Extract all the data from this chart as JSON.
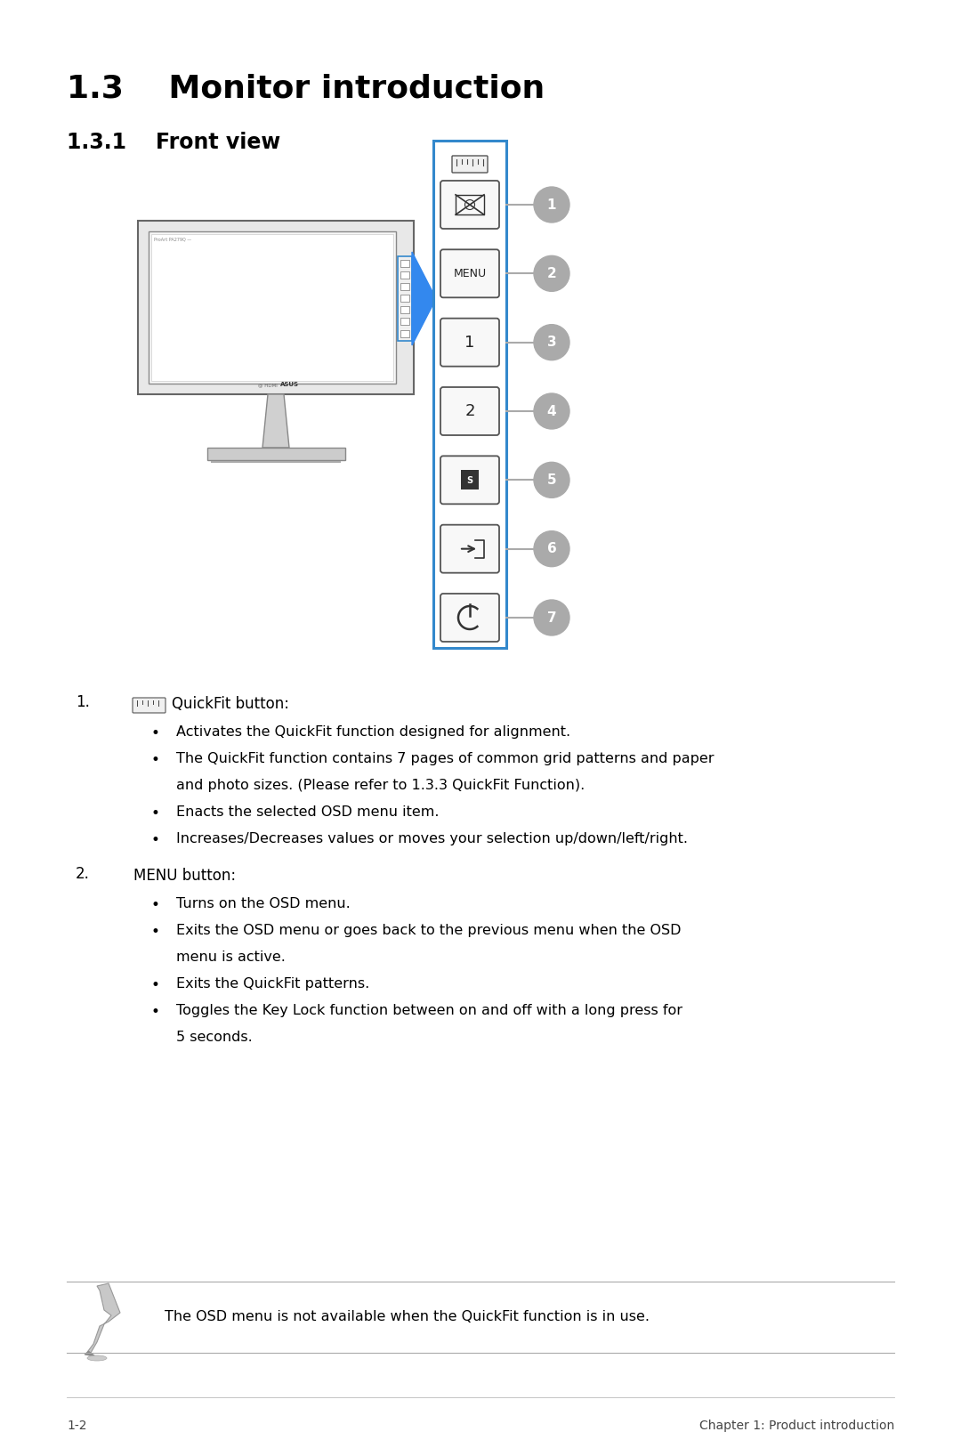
{
  "title": "1.3    Monitor introduction",
  "subtitle": "1.3.1    Front view",
  "bg_color": "#ffffff",
  "text_color": "#000000",
  "footer_left": "1-2",
  "footer_right": "Chapter 1: Product introduction",
  "note_text": "The OSD menu is not available when the QuickFit function is in use.",
  "number_labels": [
    "1",
    "2",
    "3",
    "4",
    "5",
    "6",
    "7"
  ],
  "items": [
    {
      "num": "1.",
      "label": "QuickFit button:",
      "bullets": [
        "Activates the QuickFit function designed for alignment.",
        "The QuickFit function contains 7 pages of common grid patterns and paper\nand photo sizes. (Please refer to 1.3.3 QuickFit Function).",
        "Enacts the selected OSD menu item.",
        "Increases/Decreases values or moves your selection up/down/left/right."
      ]
    },
    {
      "num": "2.",
      "label": "MENU button:",
      "bullets": [
        "Turns on the OSD menu.",
        "Exits the OSD menu or goes back to the previous menu when the OSD\nmenu is active.",
        "Exits the QuickFit patterns.",
        "Toggles the Key Lock function between on and off with a long press for\n5 seconds."
      ]
    }
  ]
}
